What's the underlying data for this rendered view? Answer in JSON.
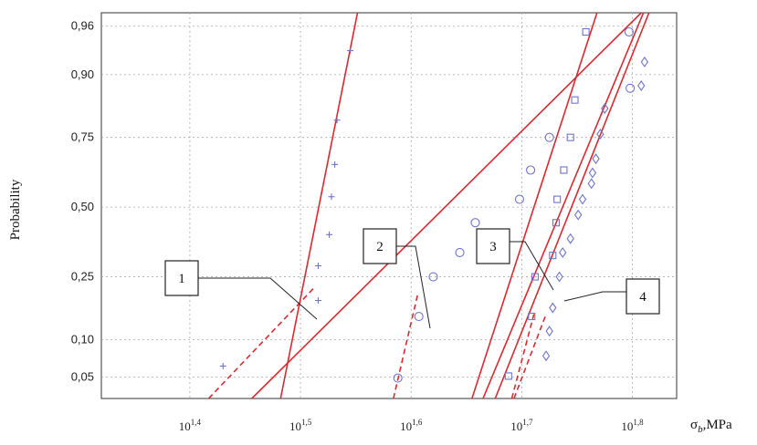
{
  "chart_data": {
    "type": "scatter",
    "xscale": "log10",
    "yscale": "probability",
    "x_ticks": [
      {
        "base": "10",
        "exp": "1,4",
        "value": 1.4
      },
      {
        "base": "10",
        "exp": "1,5",
        "value": 1.5
      },
      {
        "base": "10",
        "exp": "1,6",
        "value": 1.6
      },
      {
        "base": "10",
        "exp": "1,7",
        "value": 1.7
      },
      {
        "base": "10",
        "exp": "1,8",
        "value": 1.8
      }
    ],
    "y_ticks": [
      {
        "label": "0,96",
        "value": 0.96
      },
      {
        "label": "0,90",
        "value": 0.9
      },
      {
        "label": "0,75",
        "value": 0.75
      },
      {
        "label": "0,50",
        "value": 0.5
      },
      {
        "label": "0,25",
        "value": 0.25
      },
      {
        "label": "0,10",
        "value": 0.1
      },
      {
        "label": "0,05",
        "value": 0.05
      }
    ],
    "xlim_log10": [
      1.32,
      1.84
    ],
    "ylim": [
      0.032,
      0.97
    ],
    "ylabel": "Probability",
    "xlabel": "σb,MPa",
    "grid": true,
    "series": [
      {
        "marker": "cross",
        "color": "#6f74c8",
        "points": [
          [
            1.43,
            0.062
          ],
          [
            1.516,
            0.183
          ],
          [
            1.516,
            0.285
          ],
          [
            1.526,
            0.395
          ],
          [
            1.528,
            0.54
          ],
          [
            1.531,
            0.66
          ],
          [
            1.533,
            0.8
          ],
          [
            1.545,
            0.935
          ]
        ],
        "fit": {
          "x1": 1.482,
          "y1": 0.032,
          "x2": 1.553,
          "y2": 0.975
        },
        "tail": {
          "x1": 1.417,
          "y1": 0.032,
          "x2": 1.513,
          "y2": 0.22
        }
      },
      {
        "marker": "circle",
        "color": "#6f74c8",
        "points": [
          [
            1.588,
            0.049
          ],
          [
            1.607,
            0.145
          ],
          [
            1.62,
            0.25
          ],
          [
            1.644,
            0.33
          ],
          [
            1.658,
            0.44
          ],
          [
            1.698,
            0.53
          ],
          [
            1.708,
            0.64
          ],
          [
            1.725,
            0.75
          ],
          [
            1.798,
            0.875
          ],
          [
            1.797,
            0.955
          ]
        ],
        "fit": {
          "x1": 1.456,
          "y1": 0.032,
          "x2": 1.808,
          "y2": 0.97
        },
        "tail": {
          "x1": 1.584,
          "y1": 0.032,
          "x2": 1.606,
          "y2": 0.2
        }
      },
      {
        "marker": "square",
        "color": "#6f74c8",
        "points": [
          [
            1.688,
            0.051
          ],
          [
            1.709,
            0.145
          ],
          [
            1.712,
            0.25
          ],
          [
            1.728,
            0.32
          ],
          [
            1.731,
            0.44
          ],
          [
            1.732,
            0.53
          ],
          [
            1.738,
            0.64
          ],
          [
            1.744,
            0.75
          ],
          [
            1.748,
            0.85
          ],
          [
            1.758,
            0.955
          ]
        ],
        "fit": {
          "x1": 1.655,
          "y1": 0.032,
          "x2": 1.768,
          "y2": 0.97
        },
        "tail": {
          "x1": 1.691,
          "y1": 0.032,
          "x2": 1.711,
          "y2": 0.15
        }
      },
      {
        "marker": "diamond",
        "color": "#6f74c8",
        "points": [
          [
            1.722,
            0.075
          ],
          [
            1.725,
            0.115
          ],
          [
            1.728,
            0.165
          ],
          [
            1.734,
            0.25
          ],
          [
            1.737,
            0.33
          ],
          [
            1.744,
            0.38
          ],
          [
            1.751,
            0.47
          ],
          [
            1.755,
            0.53
          ],
          [
            1.763,
            0.59
          ],
          [
            1.764,
            0.63
          ],
          [
            1.767,
            0.68
          ],
          [
            1.771,
            0.76
          ],
          [
            1.775,
            0.83
          ],
          [
            1.808,
            0.88
          ],
          [
            1.811,
            0.92
          ]
        ],
        "fit": {
          "x1": 1.665,
          "y1": 0.032,
          "x2": 1.81,
          "y2": 0.97
        },
        "tail": {
          "x1": 1.693,
          "y1": 0.032,
          "x2": 1.722,
          "y2": 0.15
        }
      }
    ],
    "extra_lines": [
      {
        "x1": 1.676,
        "y1": 0.032,
        "x2": 1.815,
        "y2": 0.97
      }
    ],
    "callouts": [
      {
        "label": "1"
      },
      {
        "label": "2"
      },
      {
        "label": "3"
      },
      {
        "label": "4"
      }
    ],
    "colors": {
      "fit": "#d9292f",
      "marker": "#6f74c8",
      "grid": "#aaaaaa",
      "frame": "#555555"
    }
  }
}
